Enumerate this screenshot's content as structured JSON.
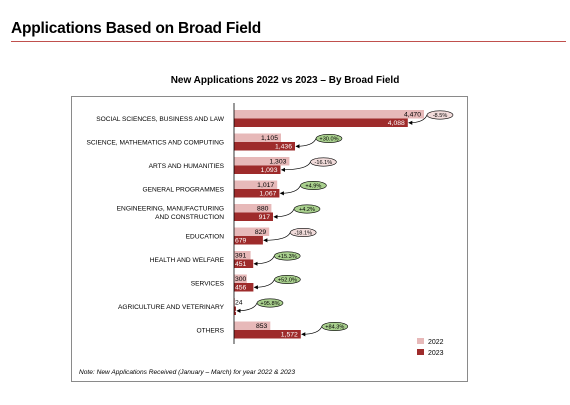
{
  "page": {
    "title": "Applications Based on Broad Field",
    "note": "Note: New Applications Received (January – March) for year 2022 & 2023"
  },
  "colors": {
    "bar_2022": "#e7b9b9",
    "bar_2023": "#9e2b2b",
    "bubble_positive": "#a9d08e",
    "bubble_negative": "#f2dcdb",
    "rule": "#c0504d"
  },
  "chart_data": {
    "type": "bar",
    "orientation": "horizontal",
    "title": "New Applications 2022 vs 2023 – By Broad Field",
    "categories": [
      [
        "SOCIAL SCIENCES, BUSINESS AND LAW"
      ],
      [
        "SCIENCE, MATHEMATICS AND COMPUTING"
      ],
      [
        "ARTS AND HUMANITIES"
      ],
      [
        "GENERAL PROGRAMMES"
      ],
      [
        "ENGINEERING, MANUFACTURING",
        "AND CONSTRUCTION"
      ],
      [
        "EDUCATION"
      ],
      [
        "HEALTH AND WELFARE"
      ],
      [
        "SERVICES"
      ],
      [
        "AGRICULTURE AND VETERINARY"
      ],
      [
        "OTHERS"
      ]
    ],
    "series": [
      {
        "name": "2022",
        "values": [
          4470,
          1105,
          1303,
          1017,
          880,
          829,
          391,
          300,
          24,
          853
        ],
        "labels": [
          "4,470",
          "1,105",
          "1,303",
          "1,017",
          "880",
          "829",
          "391",
          "300",
          "24",
          "853"
        ]
      },
      {
        "name": "2023",
        "values": [
          4088,
          1436,
          1093,
          1067,
          917,
          679,
          451,
          456,
          47,
          1572
        ],
        "labels": [
          "4,088",
          "1,436",
          "1,093",
          "1,067",
          "917",
          "679",
          "451",
          "456",
          "47",
          "1,572"
        ]
      }
    ],
    "changes": [
      "-8.5%",
      "+30.0%",
      "-16.1%",
      "+4.9%",
      "+4.2%",
      "-18.1%",
      "+15.3%",
      "+52.0%",
      "+95.8%",
      "+84.3%"
    ],
    "xlim": [
      0,
      4470
    ],
    "legend_position": "bottom-right",
    "grid": false
  }
}
